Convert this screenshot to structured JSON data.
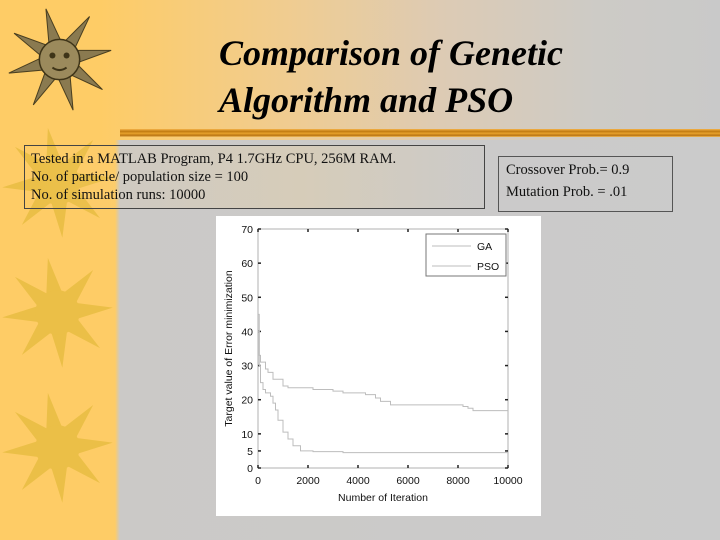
{
  "slide": {
    "title_line1": "Comparison of Genetic",
    "title_line2": "Algorithm and PSO",
    "info_box": {
      "lines": [
        "Tested in a MATLAB Program, P4 1.7GHz  CPU, 256M RAM.",
        "No. of particle/ population size = 100",
        "No. of simulation runs: 10000"
      ]
    },
    "params_box": {
      "lines": [
        "Crossover Prob.= 0.9",
        "Mutation Prob. = .01"
      ]
    },
    "decorations": [
      "sun-face-icon",
      "sun-icon",
      "sun-icon",
      "sun-icon"
    ],
    "colors": {
      "sidebar": "#fecc66",
      "background_right": "#c9c9c9",
      "divider": "#c07a10"
    }
  },
  "chart_data": {
    "type": "line",
    "title": "",
    "xlabel": "Number of Iteration",
    "ylabel": "Target value of Error minimization",
    "xlim": [
      0,
      10000
    ],
    "ylim": [
      0,
      70
    ],
    "x_ticks": [
      0,
      2000,
      4000,
      6000,
      8000,
      10000
    ],
    "y_ticks": [
      0,
      5,
      10,
      20,
      30,
      40,
      50,
      60,
      70
    ],
    "grid": false,
    "legend_position": "upper right",
    "legend": [
      "GA",
      "PSO"
    ],
    "series": [
      {
        "name": "GA",
        "x": [
          0,
          50,
          100,
          150,
          300,
          400,
          600,
          900,
          1000,
          1200,
          2000,
          2200,
          3000,
          3400,
          4000,
          4300,
          4700,
          4900,
          5300,
          8000,
          8200,
          8400,
          8600,
          10000
        ],
        "y": [
          40,
          33,
          31,
          31,
          29,
          28,
          26,
          26,
          24,
          23.5,
          23.5,
          23,
          22.5,
          22,
          22,
          21.5,
          20.5,
          19.5,
          18.5,
          18.5,
          18,
          17.5,
          16.8,
          16.8
        ]
      },
      {
        "name": "PSO",
        "x": [
          0,
          50,
          100,
          200,
          300,
          500,
          600,
          700,
          800,
          1000,
          1200,
          1400,
          1700,
          2000,
          2200,
          3000,
          3400,
          4000,
          10000
        ],
        "y": [
          45,
          30,
          25,
          23,
          22,
          21,
          19,
          17,
          14,
          10.5,
          8.5,
          6.5,
          5,
          5,
          4.8,
          4.8,
          4.5,
          4.5,
          4.5
        ]
      }
    ]
  }
}
